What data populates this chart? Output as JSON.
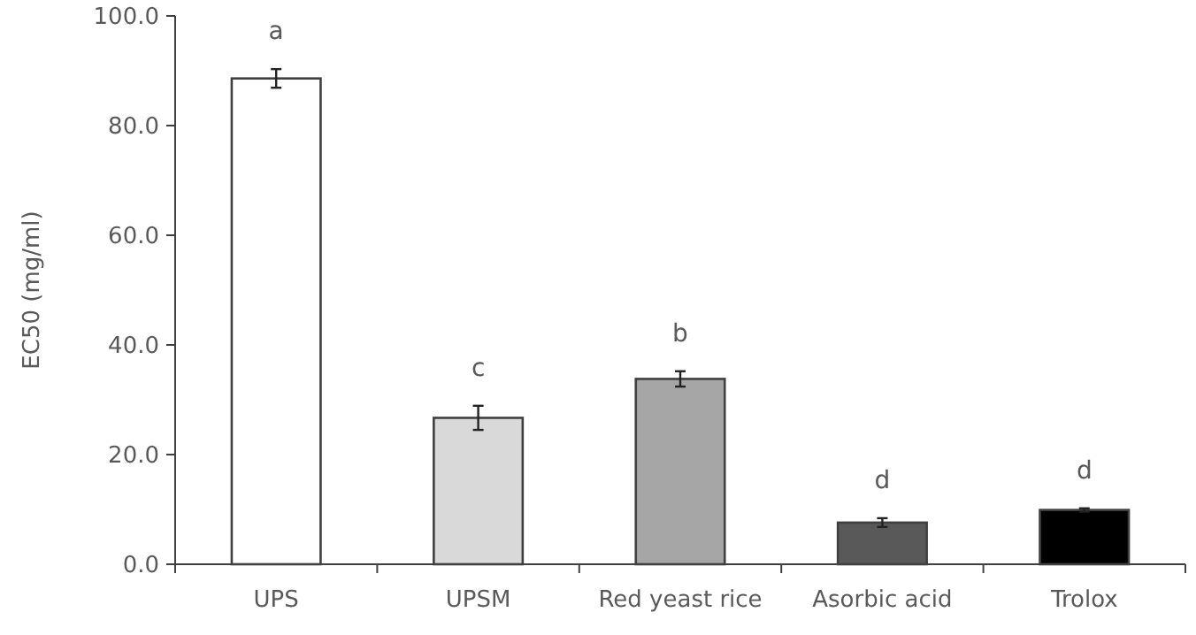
{
  "chart_data": {
    "type": "bar",
    "ylabel": "EC50 (mg/ml)",
    "categories": [
      "UPS",
      "UPSM",
      "Red yeast rice",
      "Asorbic acid",
      "Trolox"
    ],
    "values": [
      88.6,
      26.7,
      33.8,
      7.6,
      9.9
    ],
    "colors": [
      "#ffffff",
      "#d9d9d9",
      "#a6a6a6",
      "#595959",
      "#000000"
    ],
    "errors": [
      1.7,
      2.2,
      1.4,
      0.8,
      0.3
    ],
    "ylim": [
      0,
      100
    ],
    "yticks": [
      {
        "value": 0,
        "label": "0.0"
      },
      {
        "value": 20,
        "label": "20.0"
      },
      {
        "value": 40,
        "label": "40.0"
      },
      {
        "value": 60,
        "label": "60.0"
      },
      {
        "value": 80,
        "label": "80.0"
      },
      {
        "value": 100,
        "label": "100.0"
      }
    ],
    "annotations": [
      "a",
      "c",
      "b",
      "d",
      "d"
    ]
  }
}
